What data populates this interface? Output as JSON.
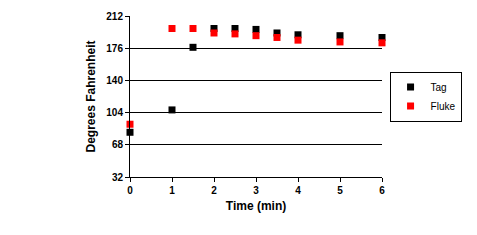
{
  "chart_data": {
    "type": "scatter",
    "x_label": "Time (min)",
    "y_label": "Degrees Fahrenheit",
    "series": [
      {
        "name": "Tag",
        "color": "#000000",
        "marker": "square",
        "x": [
          0,
          1,
          1.5,
          2,
          2.5,
          3,
          3.5,
          4,
          5,
          6
        ],
        "values": [
          82,
          107,
          177,
          198,
          198,
          197,
          193,
          191,
          190,
          188
        ]
      },
      {
        "name": "Fluke",
        "color": "#ff0000",
        "marker": "square",
        "x": [
          0,
          1,
          1.5,
          2,
          2.5,
          3,
          3.5,
          4,
          5,
          6
        ],
        "values": [
          91,
          198,
          198,
          193,
          192,
          190,
          188,
          185,
          183,
          182
        ]
      }
    ],
    "xlim": [
      0,
      6
    ],
    "xticks": [
      0,
      1,
      2,
      3,
      4,
      5,
      6
    ],
    "ylim": [
      32,
      212
    ],
    "yticks": [
      32,
      68,
      104,
      140,
      176,
      212
    ],
    "grid": true,
    "legend": "right"
  }
}
